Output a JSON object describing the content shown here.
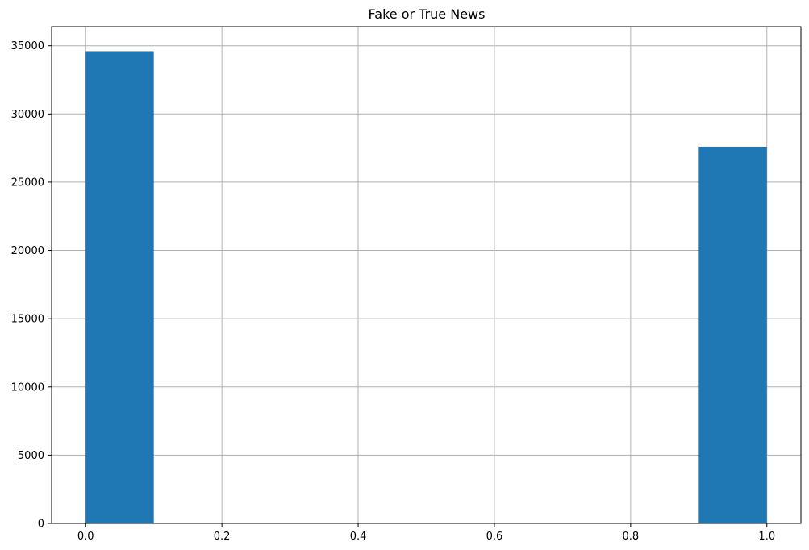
{
  "chart_data": {
    "type": "bar",
    "title": "Fake or True News",
    "xlabel": "",
    "ylabel": "",
    "xlim": [
      -0.05,
      1.05
    ],
    "ylim": [
      0,
      36400
    ],
    "x_ticks": [
      0.0,
      0.2,
      0.4,
      0.6,
      0.8,
      1.0
    ],
    "x_tick_labels": [
      "0.0",
      "0.2",
      "0.4",
      "0.6",
      "0.8",
      "1.0"
    ],
    "y_ticks": [
      0,
      5000,
      10000,
      15000,
      20000,
      25000,
      30000,
      35000
    ],
    "y_tick_labels": [
      "0",
      "5000",
      "10000",
      "15000",
      "20000",
      "25000",
      "30000",
      "35000"
    ],
    "bin_edges": [
      0.0,
      0.1,
      0.2,
      0.3,
      0.4,
      0.5,
      0.6,
      0.7,
      0.8,
      0.9,
      1.0
    ],
    "values": [
      34600,
      0,
      0,
      0,
      0,
      0,
      0,
      0,
      0,
      27600
    ],
    "grid": true,
    "colors": {
      "bar": "#1f77b4",
      "grid": "#b0b0b0",
      "axis": "#000000"
    }
  }
}
